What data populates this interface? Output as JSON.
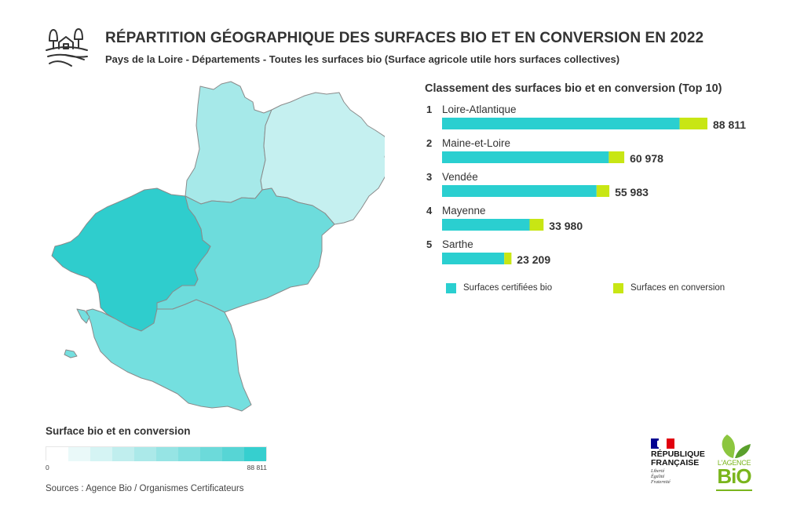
{
  "header": {
    "title": "RÉPARTITION GÉOGRAPHIQUE DES SURFACES BIO ET EN CONVERSION EN 2022",
    "subtitle": "Pays de la Loire - Départements - Toutes les surfaces bio (Surface agricole utile hors surfaces collectives)",
    "icon": "farm-icon"
  },
  "colors": {
    "bio": "#2acfd0",
    "conversion": "#c8e614",
    "map_max": "#36cfcf",
    "map_min": "#ffffff",
    "border": "#8a8a8a"
  },
  "chart_data": {
    "type": "bar",
    "orientation": "horizontal",
    "stacked": true,
    "title": "Classement des surfaces bio et en conversion (Top 10)",
    "categories": [
      "Loire-Atlantique",
      "Maine-et-Loire",
      "Vendée",
      "Mayenne",
      "Sarthe"
    ],
    "ranks": [
      "1",
      "2",
      "3",
      "4",
      "5"
    ],
    "totals": [
      88811,
      60978,
      55983,
      33980,
      23209
    ],
    "total_labels": [
      "88 811",
      "60 978",
      "55 983",
      "33 980",
      "23 209"
    ],
    "series": [
      {
        "name": "Surfaces certifiées bio",
        "values": [
          79500,
          55800,
          51700,
          29300,
          20800
        ]
      },
      {
        "name": "Surfaces en conversion",
        "values": [
          9311,
          5178,
          4283,
          4680,
          2409
        ]
      }
    ],
    "xlim": [
      0,
      88811
    ],
    "legend_position": "bottom"
  },
  "map": {
    "type": "choropleth",
    "departments": [
      {
        "name": "Loire-Atlantique",
        "value": 88811,
        "color": "#2fcdcd"
      },
      {
        "name": "Maine-et-Loire",
        "value": 60978,
        "color": "#6ddcdc"
      },
      {
        "name": "Vendée",
        "value": 55983,
        "color": "#74dfdf"
      },
      {
        "name": "Mayenne",
        "value": 33980,
        "color": "#a6e9e9"
      },
      {
        "name": "Sarthe",
        "value": 23209,
        "color": "#c5f0f0"
      }
    ]
  },
  "scale": {
    "title": "Surface bio et en conversion",
    "min_label": "0",
    "max_label": "88 811",
    "steps": [
      "#ffffff",
      "#eaf9f9",
      "#d5f4f4",
      "#c0eeee",
      "#abe9e9",
      "#96e4e4",
      "#81dfdf",
      "#6cdada",
      "#57d5d5",
      "#36cfcf"
    ]
  },
  "footer": {
    "sources": "Sources : Agence Bio / Organismes Certificateurs",
    "rf_lines": [
      "RÉPUBLIQUE",
      "FRANÇAISE"
    ],
    "rf_motto": [
      "Liberté",
      "Égalité",
      "Fraternité"
    ],
    "agence_line1": "L'AGENCE",
    "agence_line2": "BiO"
  }
}
